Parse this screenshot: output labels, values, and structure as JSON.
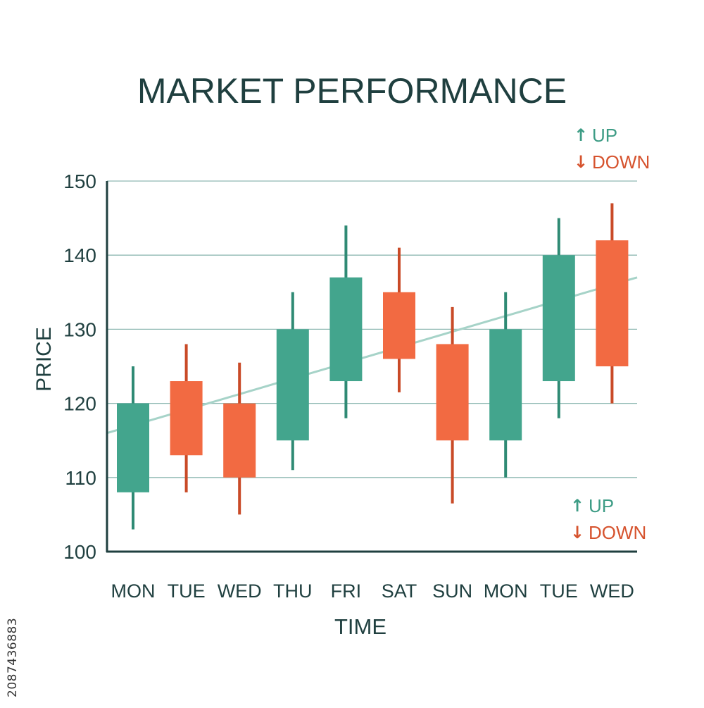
{
  "chart_data": {
    "type": "candlestick",
    "title": "MARKET PERFORMANCE",
    "xlabel": "TIME",
    "ylabel": "PRICE",
    "ylim": [
      100,
      150
    ],
    "yticks": [
      "100",
      "110",
      "120",
      "130",
      "140",
      "150"
    ],
    "grid": true,
    "categories": [
      "MON",
      "TUE",
      "WED",
      "THU",
      "FRI",
      "SAT",
      "SUN",
      "MON",
      "TUE",
      "WED"
    ],
    "candles": [
      {
        "open": 108,
        "close": 120,
        "high": 125,
        "low": 103
      },
      {
        "open": 123,
        "close": 113,
        "high": 128,
        "low": 108
      },
      {
        "open": 120,
        "close": 110,
        "high": 125.5,
        "low": 105
      },
      {
        "open": 115,
        "close": 130,
        "high": 135,
        "low": 111
      },
      {
        "open": 123,
        "close": 137,
        "high": 144,
        "low": 118
      },
      {
        "open": 135,
        "close": 126,
        "high": 141,
        "low": 121.5
      },
      {
        "open": 128,
        "close": 115,
        "high": 133,
        "low": 106.5
      },
      {
        "open": 115,
        "close": 130,
        "high": 135,
        "low": 110
      },
      {
        "open": 123,
        "close": 140,
        "high": 145,
        "low": 118
      },
      {
        "open": 142,
        "close": 125,
        "high": 147,
        "low": 120
      }
    ],
    "trend_line": {
      "start": 116,
      "end": 137
    },
    "legend": [
      {
        "label": "UP",
        "arrow": "↑",
        "color": "#3d9c85"
      },
      {
        "label": "DOWN",
        "arrow": "↓",
        "color": "#d6532e"
      }
    ],
    "legend_positions": [
      "top-right",
      "bottom-right"
    ],
    "colors": {
      "up": "#43a58d",
      "down": "#f26a42",
      "up_wick": "#2f8a74",
      "down_wick": "#c94a27",
      "trend": "#a6d3c8",
      "grid": "#8fb9b3",
      "axis": "#1f3f3f",
      "text": "#1f3f3f"
    }
  },
  "side_id": "2087436883"
}
